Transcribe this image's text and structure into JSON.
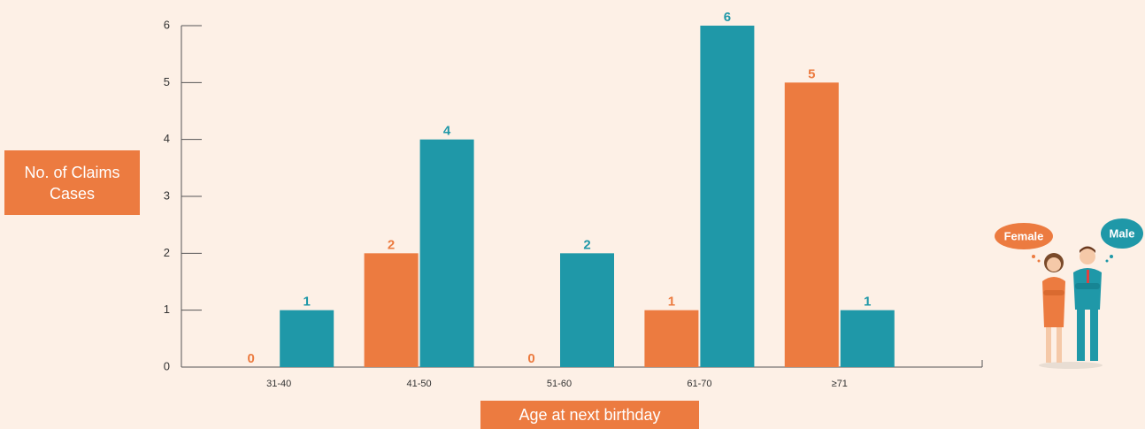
{
  "chart_data": {
    "type": "bar",
    "y_label": "No. of Claims Cases",
    "x_label": "Age at next birthday",
    "categories": [
      "31-40",
      "41-50",
      "51-60",
      "61-70",
      "≥71"
    ],
    "series": [
      {
        "name": "Female",
        "color": "#ec7b40",
        "values": [
          0,
          2,
          0,
          1,
          5
        ]
      },
      {
        "name": "Male",
        "color": "#1f98a8",
        "values": [
          1,
          4,
          2,
          6,
          1
        ]
      }
    ],
    "ylim": [
      0,
      6
    ],
    "yticks": [
      0,
      1,
      2,
      3,
      4,
      5,
      6
    ]
  }
}
